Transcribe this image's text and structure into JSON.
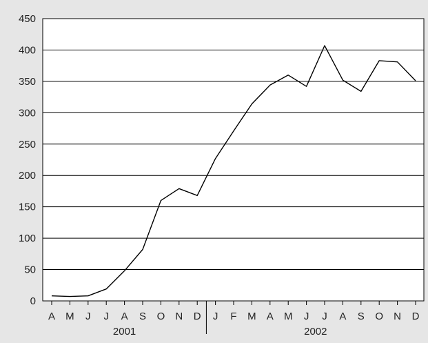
{
  "chart_data": {
    "type": "line",
    "title": "",
    "xlabel": "",
    "ylabel": "",
    "ylim": [
      0,
      450
    ],
    "yticks": [
      0,
      50,
      100,
      150,
      200,
      250,
      300,
      350,
      400,
      450
    ],
    "yticks_labels": [
      "0",
      "50",
      "100",
      "150",
      "200",
      "250",
      "300",
      "350",
      "400",
      "450"
    ],
    "grid": "horizontal",
    "categories": [
      "A",
      "M",
      "J",
      "J",
      "A",
      "S",
      "O",
      "N",
      "D",
      "J",
      "F",
      "M",
      "A",
      "M",
      "J",
      "J",
      "A",
      "S",
      "O",
      "N",
      "D"
    ],
    "years": [
      {
        "label": "2001",
        "start": 0,
        "end": 8
      },
      {
        "label": "2002",
        "start": 9,
        "end": 20
      }
    ],
    "series": [
      {
        "values": [
          8,
          7,
          8,
          19,
          48,
          82,
          160,
          179,
          168,
          227,
          271,
          314,
          344,
          360,
          342,
          407,
          352,
          334,
          383,
          381,
          351
        ]
      }
    ],
    "colors": {
      "background": "#e6e6e6",
      "plot": "#ffffff",
      "line": "#000000"
    }
  }
}
